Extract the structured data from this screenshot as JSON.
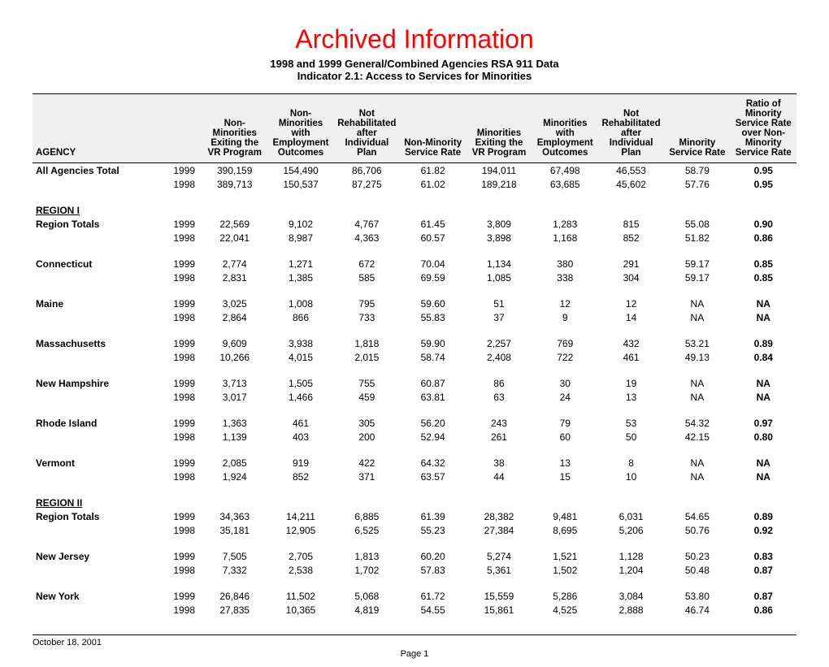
{
  "header": {
    "title": "Archived Information",
    "subtitle1": "1998 and 1999 General/Combined Agencies RSA 911 Data",
    "subtitle2": "Indicator 2.1: Access to Services for Minorities"
  },
  "columns": [
    "AGENCY",
    "",
    "Non-Minorities Exiting the VR Program",
    "Non-Minorities with Employment Outcomes",
    "Not Rehabilitated after Individual Plan",
    "Non-Minority Service Rate",
    "Minorities Exiting the VR Program",
    "Minorities with Employment Outcomes",
    "Not Rehabilitated after Individual Plan",
    "Minority Service Rate",
    "Ratio of Minority Service Rate over Non-Minority Service Rate"
  ],
  "rows": [
    {
      "type": "data",
      "first": true,
      "agency": "All Agencies Total",
      "year": "1999",
      "c": [
        "390,159",
        "154,490",
        "86,706",
        "61.82",
        "194,011",
        "67,498",
        "46,553",
        "58.79",
        "0.95"
      ]
    },
    {
      "type": "data",
      "agency": "",
      "year": "1998",
      "c": [
        "389,713",
        "150,537",
        "87,275",
        "61.02",
        "189,218",
        "63,685",
        "45,602",
        "57.76",
        "0.95"
      ]
    },
    {
      "type": "spacer"
    },
    {
      "type": "section",
      "agency": "REGION I"
    },
    {
      "type": "data",
      "agency": "Region Totals",
      "year": "1999",
      "c": [
        "22,569",
        "9,102",
        "4,767",
        "61.45",
        "3,809",
        "1,283",
        "815",
        "55.08",
        "0.90"
      ]
    },
    {
      "type": "data",
      "agency": "",
      "year": "1998",
      "c": [
        "22,041",
        "8,987",
        "4,363",
        "60.57",
        "3,898",
        "1,168",
        "852",
        "51.82",
        "0.86"
      ]
    },
    {
      "type": "spacer"
    },
    {
      "type": "data",
      "agency": "Connecticut",
      "year": "1999",
      "c": [
        "2,774",
        "1,271",
        "672",
        "70.04",
        "1,134",
        "380",
        "291",
        "59.17",
        "0.85"
      ]
    },
    {
      "type": "data",
      "agency": "",
      "year": "1998",
      "c": [
        "2,831",
        "1,385",
        "585",
        "69.59",
        "1,085",
        "338",
        "304",
        "59.17",
        "0.85"
      ]
    },
    {
      "type": "spacer"
    },
    {
      "type": "data",
      "agency": "Maine",
      "year": "1999",
      "c": [
        "3,025",
        "1,008",
        "795",
        "59.60",
        "51",
        "12",
        "12",
        "NA",
        "NA"
      ]
    },
    {
      "type": "data",
      "agency": "",
      "year": "1998",
      "c": [
        "2,864",
        "866",
        "733",
        "55.83",
        "37",
        "9",
        "14",
        "NA",
        "NA"
      ]
    },
    {
      "type": "spacer"
    },
    {
      "type": "data",
      "agency": "Massachusetts",
      "year": "1999",
      "c": [
        "9,609",
        "3,938",
        "1,818",
        "59.90",
        "2,257",
        "769",
        "432",
        "53.21",
        "0.89"
      ]
    },
    {
      "type": "data",
      "agency": "",
      "year": "1998",
      "c": [
        "10,266",
        "4,015",
        "2,015",
        "58.74",
        "2,408",
        "722",
        "461",
        "49.13",
        "0.84"
      ]
    },
    {
      "type": "spacer"
    },
    {
      "type": "data",
      "agency": "New Hampshire",
      "year": "1999",
      "c": [
        "3,713",
        "1,505",
        "755",
        "60.87",
        "86",
        "30",
        "19",
        "NA",
        "NA"
      ]
    },
    {
      "type": "data",
      "agency": "",
      "year": "1998",
      "c": [
        "3,017",
        "1,466",
        "459",
        "63.81",
        "63",
        "24",
        "13",
        "NA",
        "NA"
      ]
    },
    {
      "type": "spacer"
    },
    {
      "type": "data",
      "agency": "Rhode Island",
      "year": "1999",
      "c": [
        "1,363",
        "461",
        "305",
        "56.20",
        "243",
        "79",
        "53",
        "54.32",
        "0.97"
      ]
    },
    {
      "type": "data",
      "agency": "",
      "year": "1998",
      "c": [
        "1,139",
        "403",
        "200",
        "52.94",
        "261",
        "60",
        "50",
        "42.15",
        "0.80"
      ]
    },
    {
      "type": "spacer"
    },
    {
      "type": "data",
      "agency": "Vermont",
      "year": "1999",
      "c": [
        "2,085",
        "919",
        "422",
        "64.32",
        "38",
        "13",
        "8",
        "NA",
        "NA"
      ]
    },
    {
      "type": "data",
      "agency": "",
      "year": "1998",
      "c": [
        "1,924",
        "852",
        "371",
        "63.57",
        "44",
        "15",
        "10",
        "NA",
        "NA"
      ]
    },
    {
      "type": "spacer"
    },
    {
      "type": "section",
      "agency": "REGION II"
    },
    {
      "type": "data",
      "agency": "Region Totals",
      "year": "1999",
      "c": [
        "34,363",
        "14,211",
        "6,885",
        "61.39",
        "28,382",
        "9,481",
        "6,031",
        "54.65",
        "0.89"
      ]
    },
    {
      "type": "data",
      "agency": "",
      "year": "1998",
      "c": [
        "35,181",
        "12,905",
        "6,525",
        "55.23",
        "27,384",
        "8,695",
        "5,206",
        "50.76",
        "0.92"
      ]
    },
    {
      "type": "spacer"
    },
    {
      "type": "data",
      "agency": "New Jersey",
      "year": "1999",
      "c": [
        "7,505",
        "2,705",
        "1,813",
        "60.20",
        "5,274",
        "1,521",
        "1,128",
        "50.23",
        "0.83"
      ]
    },
    {
      "type": "data",
      "agency": "",
      "year": "1998",
      "c": [
        "7,332",
        "2,538",
        "1,702",
        "57.83",
        "5,361",
        "1,502",
        "1,204",
        "50.48",
        "0.87"
      ]
    },
    {
      "type": "spacer"
    },
    {
      "type": "data",
      "agency": "New York",
      "year": "1999",
      "c": [
        "26,846",
        "11,502",
        "5,068",
        "61.72",
        "15,559",
        "5,286",
        "3,084",
        "53.80",
        "0.87"
      ]
    },
    {
      "type": "data",
      "agency": "",
      "year": "1998",
      "c": [
        "27,835",
        "10,365",
        "4,819",
        "54.55",
        "15,861",
        "4,525",
        "2,888",
        "46.74",
        "0.86"
      ]
    }
  ],
  "footer": {
    "date": "October 18, 2001",
    "page": "Page 1"
  }
}
